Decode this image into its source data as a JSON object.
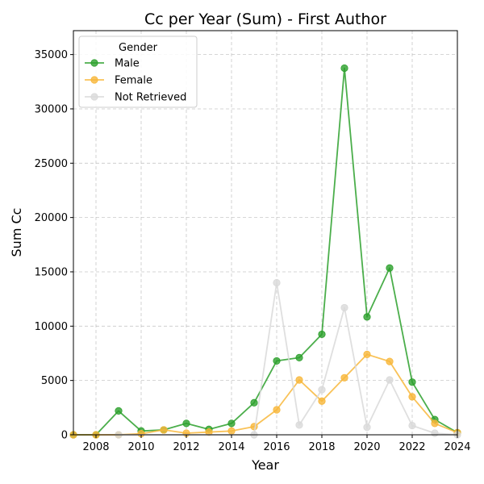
{
  "chart_data": {
    "type": "line",
    "title": "Cc per Year (Sum) - First Author",
    "xlabel": "Year",
    "ylabel": "Sum Cc",
    "xlim": [
      2007,
      2024
    ],
    "ylim": [
      0,
      37200
    ],
    "xticks": [
      2008,
      2010,
      2012,
      2014,
      2016,
      2018,
      2020,
      2022,
      2024
    ],
    "yticks": [
      0,
      5000,
      10000,
      15000,
      20000,
      25000,
      30000,
      35000
    ],
    "grid": true,
    "legend": {
      "title": "Gender",
      "position": "top-left"
    },
    "series": [
      {
        "name": "Male",
        "color": "#2ca02c",
        "points": [
          [
            2007,
            0
          ],
          [
            2008,
            0
          ],
          [
            2009,
            2200
          ],
          [
            2010,
            350
          ],
          [
            2011,
            450
          ],
          [
            2012,
            1050
          ],
          [
            2013,
            500
          ],
          [
            2014,
            1050
          ],
          [
            2015,
            2950
          ],
          [
            2016,
            6800
          ],
          [
            2017,
            7100
          ],
          [
            2018,
            9250
          ],
          [
            2019,
            33750
          ],
          [
            2020,
            10850
          ],
          [
            2021,
            15350
          ],
          [
            2022,
            4850
          ],
          [
            2023,
            1400
          ],
          [
            2024,
            200
          ]
        ]
      },
      {
        "name": "Female",
        "color": "#f8b739",
        "points": [
          [
            2007,
            0
          ],
          [
            2008,
            0
          ],
          [
            2009,
            0
          ],
          [
            2010,
            100
          ],
          [
            2011,
            450
          ],
          [
            2012,
            150
          ],
          [
            2013,
            250
          ],
          [
            2014,
            350
          ],
          [
            2015,
            750
          ],
          [
            2016,
            2300
          ],
          [
            2017,
            5050
          ],
          [
            2018,
            3100
          ],
          [
            2019,
            5250
          ],
          [
            2020,
            7400
          ],
          [
            2021,
            6750
          ],
          [
            2022,
            3500
          ],
          [
            2023,
            1050
          ],
          [
            2024,
            200
          ]
        ]
      },
      {
        "name": "Not Retrieved",
        "color": "#d9d9d9",
        "points": [
          [
            2009,
            0
          ],
          [
            2015,
            0
          ],
          [
            2016,
            14000
          ],
          [
            2017,
            900
          ],
          [
            2018,
            4150
          ],
          [
            2019,
            11700
          ],
          [
            2020,
            700
          ],
          [
            2021,
            5050
          ],
          [
            2022,
            850
          ],
          [
            2023,
            150
          ],
          [
            2024,
            0
          ]
        ]
      }
    ]
  }
}
